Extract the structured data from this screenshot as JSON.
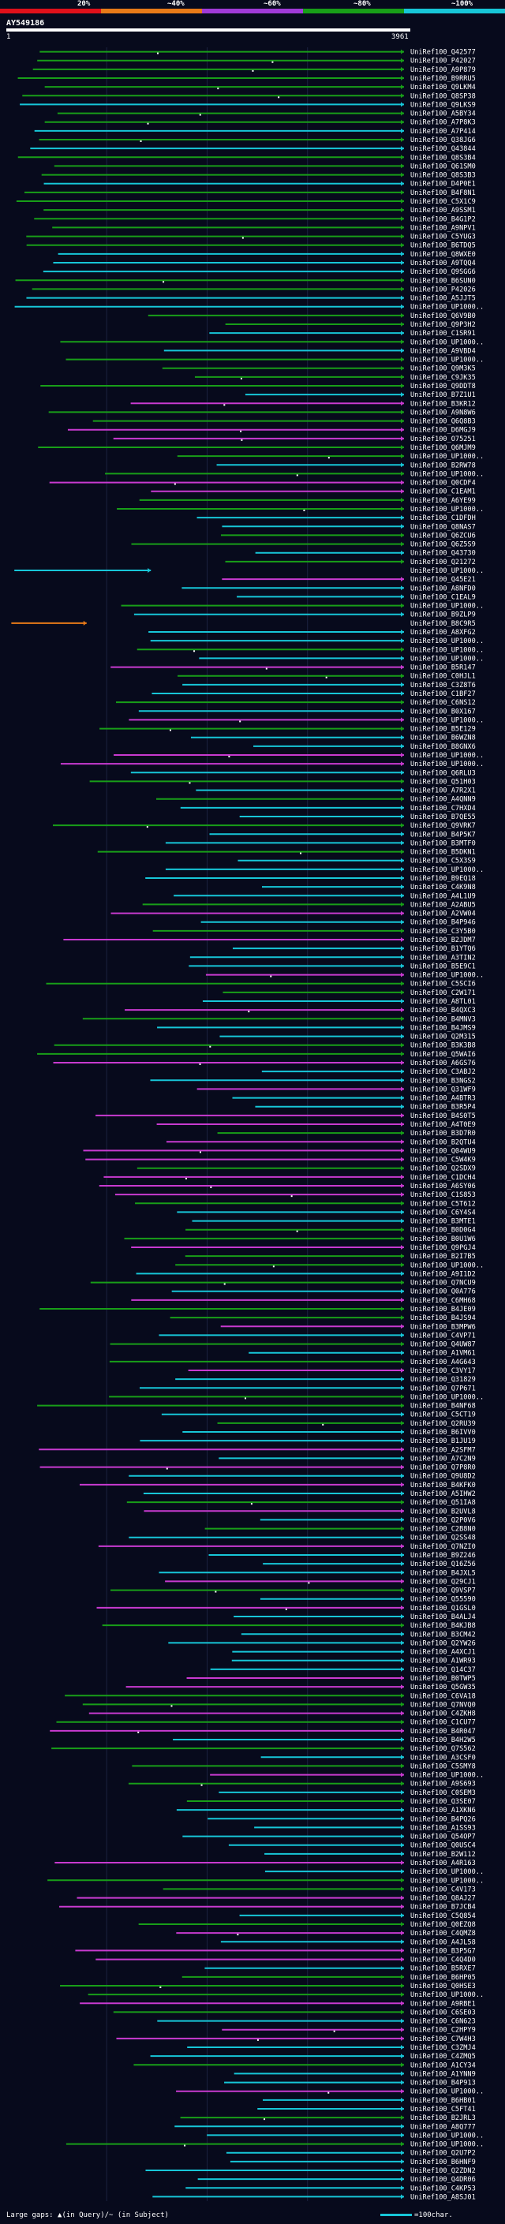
{
  "chart_data": {
    "type": "alignment-overview",
    "query": {
      "name": "AY549186",
      "start": 1,
      "end": 3961
    },
    "identity_legend": [
      {
        "label": "20%",
        "color": "#e0101a"
      },
      {
        "label": "~40%",
        "color": "#e87a18"
      },
      {
        "label": "~60%",
        "color": "#a03ad8"
      },
      {
        "label": "~80%",
        "color": "#189e18"
      },
      {
        "label": "~100%",
        "color": "#17c6d8"
      }
    ],
    "categories": [
      "UniRef100_Q42577",
      "UniRef100_P42027",
      "UniRef100_A9P879",
      "UniRef100_B9RRU5",
      "UniRef100_Q9LKM4",
      "UniRef100_Q8SP38",
      "UniRef100_Q9LKS9",
      "UniRef100_A5BY34",
      "UniRef100_A7P8K3",
      "UniRef100_A7P414",
      "UniRef100_Q38JG6",
      "UniRef100_Q43844",
      "UniRef100_Q8S3B4",
      "UniRef100_Q61SM0",
      "UniRef100_Q8S3B3",
      "UniRef100_D4P0E1",
      "UniRef100_B4F8N1",
      "UniRef100_C5X1C9",
      "UniRef100_A9SSM1",
      "UniRef100_B4G1P2",
      "UniRef100_A9NPV1",
      "UniRef100_C5YUG3",
      "UniRef100_B6TDQ5",
      "UniRef100_Q8WXE0",
      "UniRef100_A9TQQ4",
      "UniRef100_Q9SGG6",
      "UniRef100_B6SUN0",
      "UniRef100_P42026",
      "UniRef100_A5JJT5",
      "UniRef100_UP1000..",
      "UniRef100_Q6V9B0",
      "UniRef100_Q9P3H2",
      "UniRef100_C1SR91",
      "UniRef100_UP1000..",
      "UniRef100_A9VBD4",
      "UniRef100_UP1000..",
      "UniRef100_Q9M3K5",
      "UniRef100_C9JK35",
      "UniRef100_Q9DDT8",
      "UniRef100_B7Z1U1",
      "UniRef100_B3KR12",
      "UniRef100_A9N8W6",
      "UniRef100_Q6Q8B3",
      "UniRef100_D6MGJ9",
      "UniRef100_O75251",
      "UniRef100_Q6MJM9",
      "UniRef100_UP1000..",
      "UniRef100_B2RW78",
      "UniRef100_UP1000..",
      "UniRef100_Q0CDF4",
      "UniRef100_C1EAM1",
      "UniRef100_A6YE99",
      "UniRef100_UP1000..",
      "UniRef100_C1DFDH",
      "UniRef100_Q8NAS7",
      "UniRef100_Q6ZCU6",
      "UniRef100_Q6Z5S9",
      "UniRef100_Q43730",
      "UniRef100_Q21272",
      "UniRef100_UP1000..",
      "UniRef100_Q45E21",
      "UniRef100_A8NFD0",
      "UniRef100_C1EAL9",
      "UniRef100_UP1000..",
      "UniRef100_B9ZLP9",
      "UniRef100_B8C9R5",
      "UniRef100_A8XFG2",
      "UniRef100_UP1000..",
      "UniRef100_UP1000..",
      "UniRef100_UP1000..",
      "UniRef100_B5R147",
      "UniRef100_C0HJL1",
      "UniRef100_C3Z8T6",
      "UniRef100_C1BF27",
      "UniRef100_C6NS12",
      "UniRef100_B0X167",
      "UniRef100_UP1000..",
      "UniRef100_B5E129",
      "UniRef100_B6WZN8",
      "UniRef100_B8GNX6",
      "UniRef100_UP1000..",
      "UniRef100_UP1000..",
      "UniRef100_Q6RLU3",
      "UniRef100_Q51H03",
      "UniRef100_A7R2X1",
      "UniRef100_A4QNN9",
      "UniRef100_C7HXD4",
      "UniRef100_B7QE55",
      "UniRef100_Q9VRK7",
      "UniRef100_B4P5K7",
      "UniRef100_B3MTF0",
      "UniRef100_B5DKN1",
      "UniRef100_C5X3S9",
      "UniRef100_UP1000..",
      "UniRef100_B9EQ18",
      "UniRef100_C4K9N8",
      "UniRef100_A4L1U9",
      "UniRef100_A2ABU5",
      "UniRef100_A2VW04",
      "UniRef100_B4P946",
      "UniRef100_C3Y5B0",
      "UniRef100_B2JDM7",
      "UniRef100_B1YTQ6",
      "UniRef100_A3TIN2",
      "UniRef100_B5E9C1",
      "UniRef100_UP1000..",
      "UniRef100_C5SCI6",
      "UniRef100_C2W171",
      "UniRef100_A8TL01",
      "UniRef100_B4QXC3",
      "UniRef100_B4MNV3",
      "UniRef100_B4JMS9",
      "UniRef100_Q2M315",
      "UniRef100_B3K3B8",
      "UniRef100_Q5WAI6",
      "UniRef100_A6GS76",
      "UniRef100_C3ABJ2",
      "UniRef100_B3NGS2",
      "UniRef100_Q31WF9",
      "UniRef100_A4BTR3",
      "UniRef100_B3R5P4",
      "UniRef100_B4S0T5",
      "UniRef100_A4T0E9",
      "UniRef100_B3D7R0",
      "UniRef100_B2QTU4",
      "UniRef100_Q04WU9",
      "UniRef100_C5W4K9",
      "UniRef100_Q2SDX9",
      "UniRef100_C1DCH4",
      "UniRef100_A6SY06",
      "UniRef100_C1S853",
      "UniRef100_C5T612",
      "UniRef100_C6Y4S4",
      "UniRef100_B3MTE1",
      "UniRef100_B0D0G4",
      "UniRef100_B0U1W6",
      "UniRef100_Q9PGJ4",
      "UniRef100_B2I7B5",
      "UniRef100_UP1000..",
      "UniRef100_A9I1D2",
      "UniRef100_Q7NCU9",
      "UniRef100_Q0A776",
      "UniRef100_C6MH68",
      "UniRef100_B4JE09",
      "UniRef100_B4JS94",
      "UniRef100_B3MPW6",
      "UniRef100_C4VP71",
      "UniRef100_Q4UW87",
      "UniRef100_A1VM61",
      "UniRef100_A4G643",
      "UniRef100_C3VY17",
      "UniRef100_Q31829",
      "UniRef100_Q7P671",
      "UniRef100_UP1000..",
      "UniRef100_B4NF68",
      "UniRef100_C5CT19",
      "UniRef100_Q2RU39",
      "UniRef100_B6IVV0",
      "UniRef100_B1JU19",
      "UniRef100_A2SFM7",
      "UniRef100_A7C2N9",
      "UniRef100_Q7P8R0",
      "UniRef100_Q9U8D2",
      "UniRef100_B4KFK0",
      "UniRef100_A5IHW2",
      "UniRef100_Q51IA8",
      "UniRef100_B2UVL8",
      "UniRef100_Q2P0V6",
      "UniRef100_C2B8N0",
      "UniRef100_Q2SS48",
      "UniRef100_Q7NZI0",
      "UniRef100_B9Z246",
      "UniRef100_Q16Z56",
      "UniRef100_B4JXL5",
      "UniRef100_Q29CJ1",
      "UniRef100_Q9VSP7",
      "UniRef100_Q55590",
      "UniRef100_Q1GSL0",
      "UniRef100_B4ALJ4",
      "UniRef100_B4KJB8",
      "UniRef100_B3CM42",
      "UniRef100_Q2YW26",
      "UniRef100_A4XCJ1",
      "UniRef100_A1WR93",
      "UniRef100_Q14C37",
      "UniRef100_B0TWP5",
      "UniRef100_Q5GW35",
      "UniRef100_C6VA18",
      "UniRef100_Q7NVQ0",
      "UniRef100_C4ZKH8",
      "UniRef100_C1CU77",
      "UniRef100_B4R047",
      "UniRef100_B4H2W5",
      "UniRef100_Q7S562",
      "UniRef100_A3CSF0",
      "UniRef100_C5SMY8",
      "UniRef100_UP1000..",
      "UniRef100_A9S693",
      "UniRef100_C0SEM3",
      "UniRef100_Q3SE07",
      "UniRef100_A1XKN6",
      "UniRef100_B4PQ26",
      "UniRef100_A1SS93",
      "UniRef100_Q54OP7",
      "UniRef100_Q0USC4",
      "UniRef100_B2W112",
      "UniRef100_A4R163",
      "UniRef100_UP1000..",
      "UniRef100_UP1000..",
      "UniRef100_C4V173",
      "UniRef100_Q8AJ27",
      "UniRef100_B7JCB4",
      "UniRef100_C5Q854",
      "UniRef100_Q0EZQ8",
      "UniRef100_C4QMZ8",
      "UniRef100_A4JL58",
      "UniRef100_B3P5G7",
      "UniRef100_C4Q4D0",
      "UniRef100_B5RXE7",
      "UniRef100_B6HP05",
      "UniRef100_Q0HSE3",
      "UniRef100_UP1000..",
      "UniRef100_A9RBE1",
      "UniRef100_C6SE03",
      "UniRef100_C6N623",
      "UniRef100_C2HPY9",
      "UniRef100_C7W4H3",
      "UniRef100_C3ZMJ4",
      "UniRef100_C4ZMQ5",
      "UniRef100_A1CY34",
      "UniRef100_A1YNN9",
      "UniRef100_B4P913",
      "UniRef100_UP1000..",
      "UniRef100_B6HB01",
      "UniRef100_C5FT41",
      "UniRef100_B2JRL3",
      "UniRef100_A8Q777",
      "UniRef100_UP1000..",
      "UniRef100_UP1000..",
      "UniRef100_Q2U7P2",
      "UniRef100_B6HNF9",
      "UniRef100_Q2ZDN2",
      "UniRef100_Q4DR06",
      "UniRef100_C4KP53",
      "UniRef100_A8SJ01"
    ],
    "footer_note": "Large gaps: ▲(in Query)/~ (in Subject)",
    "scale_note": "=100char."
  }
}
